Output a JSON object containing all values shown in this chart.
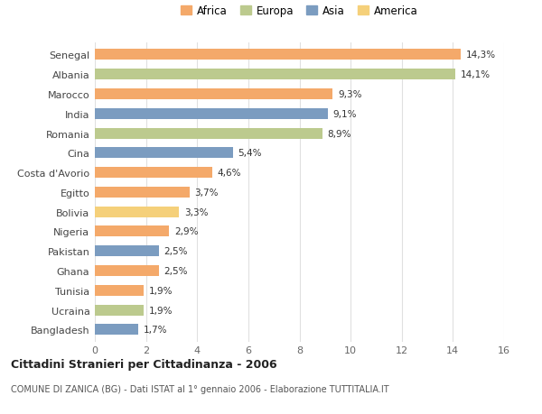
{
  "countries": [
    "Senegal",
    "Albania",
    "Marocco",
    "India",
    "Romania",
    "Cina",
    "Costa d'Avorio",
    "Egitto",
    "Bolivia",
    "Nigeria",
    "Pakistan",
    "Ghana",
    "Tunisia",
    "Ucraina",
    "Bangladesh"
  ],
  "values": [
    14.3,
    14.1,
    9.3,
    9.1,
    8.9,
    5.4,
    4.6,
    3.7,
    3.3,
    2.9,
    2.5,
    2.5,
    1.9,
    1.9,
    1.7
  ],
  "labels": [
    "14,3%",
    "14,1%",
    "9,3%",
    "9,1%",
    "8,9%",
    "5,4%",
    "4,6%",
    "3,7%",
    "3,3%",
    "2,9%",
    "2,5%",
    "2,5%",
    "1,9%",
    "1,9%",
    "1,7%"
  ],
  "continents": [
    "Africa",
    "Europa",
    "Africa",
    "Asia",
    "Europa",
    "Asia",
    "Africa",
    "Africa",
    "America",
    "Africa",
    "Asia",
    "Africa",
    "Africa",
    "Europa",
    "Asia"
  ],
  "continent_colors": {
    "Africa": "#F4A96A",
    "Europa": "#BCCA8E",
    "Asia": "#7B9CC0",
    "America": "#F5D07A"
  },
  "legend_order": [
    "Africa",
    "Europa",
    "Asia",
    "America"
  ],
  "title": "Cittadini Stranieri per Cittadinanza - 2006",
  "subtitle": "COMUNE DI ZANICA (BG) - Dati ISTAT al 1° gennaio 2006 - Elaborazione TUTTITALIA.IT",
  "xlim": [
    0,
    16
  ],
  "xticks": [
    0,
    2,
    4,
    6,
    8,
    10,
    12,
    14,
    16
  ],
  "bg_color": "#ffffff",
  "grid_color": "#e0e0e0",
  "bar_height": 0.55
}
